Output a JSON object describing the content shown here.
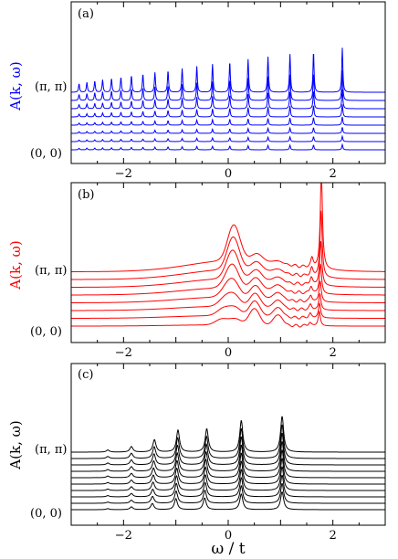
{
  "chart_data": [
    {
      "panel": "(a)",
      "type": "line",
      "ylabel": "A(k, ω)",
      "color": "#0000ff",
      "x_range": [
        -3,
        3
      ],
      "xticks": [
        -2,
        0,
        2
      ],
      "k_labels": {
        "bottom": "(0, 0)",
        "top": "(π, π)"
      },
      "n_curves": 8,
      "peaks_x": [
        -2.85,
        -2.7,
        -2.55,
        -2.4,
        -2.23,
        -2.05,
        -1.85,
        -1.63,
        -1.4,
        -1.15,
        -0.88,
        -0.6,
        -0.3,
        0.03,
        0.38,
        0.76,
        1.18,
        1.63,
        2.18
      ],
      "peak_heights_top": [
        0.6,
        0.7,
        0.8,
        0.9,
        1.0,
        1.1,
        1.22,
        1.35,
        1.48,
        1.62,
        1.78,
        1.95,
        2.12,
        2.3,
        2.5,
        2.7,
        2.9,
        3.1,
        3.4
      ]
    },
    {
      "panel": "(b)",
      "type": "line",
      "ylabel": "A(k, ω)",
      "color": "#ff0000",
      "x_range": [
        -3,
        3
      ],
      "xticks": [
        -2,
        0,
        2
      ],
      "k_labels": {
        "bottom": "(0, 0)",
        "top": "(π, π)"
      },
      "n_curves": 8,
      "feature_peaks_x": [
        -0.15,
        0.15,
        0.55,
        1.0,
        1.6,
        1.78
      ]
    },
    {
      "panel": "(c)",
      "type": "line",
      "ylabel": "A(k, ω)",
      "color": "#000000",
      "x_range": [
        -3,
        3
      ],
      "xticks": [
        -2,
        0,
        2
      ],
      "k_labels": {
        "bottom": "(0, 0)",
        "top": "(π, π)"
      },
      "n_curves": 10,
      "peaks_x": [
        -2.3,
        -1.85,
        -1.45,
        -1.0,
        -0.45,
        0.25,
        1.03
      ],
      "peak_heights": [
        0.15,
        0.4,
        0.9,
        1.6,
        1.7,
        2.3,
        2.6
      ]
    }
  ],
  "shared": {
    "xlabel": "ω / t"
  }
}
